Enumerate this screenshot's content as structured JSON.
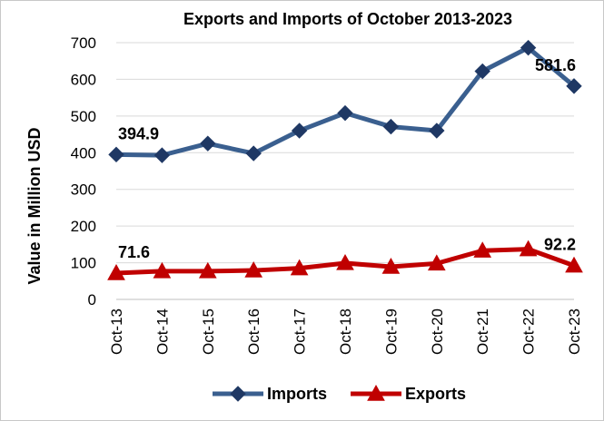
{
  "chart_data": {
    "type": "line",
    "title": "Exports and Imports of October 2013-2023",
    "xlabel": "",
    "ylabel": "Value in Million  USD",
    "ylim": [
      0,
      700
    ],
    "yticks": [
      0,
      100,
      200,
      300,
      400,
      500,
      600,
      700
    ],
    "grid": true,
    "legend_position": "bottom",
    "categories": [
      "Oct-13",
      "Oct-14",
      "Oct-15",
      "Oct-16",
      "Oct-17",
      "Oct-18",
      "Oct-19",
      "Oct-20",
      "Oct-21",
      "Oct-22",
      "Oct-23"
    ],
    "series": [
      {
        "name": "Imports",
        "color": "#3a5f8f",
        "marker": "diamond",
        "values": [
          394.9,
          393,
          425,
          398,
          460,
          508,
          471,
          460,
          622,
          686,
          581.6
        ],
        "labels": [
          {
            "index": 0,
            "text": "394.9"
          },
          {
            "index": 10,
            "text": "581.6"
          }
        ]
      },
      {
        "name": "Exports",
        "color": "#c00000",
        "marker": "triangle",
        "values": [
          71.6,
          77,
          77,
          79,
          85,
          99,
          89,
          98,
          133,
          137,
          92.2
        ],
        "labels": [
          {
            "index": 0,
            "text": "71.6"
          },
          {
            "index": 10,
            "text": "92.2"
          }
        ]
      }
    ]
  }
}
